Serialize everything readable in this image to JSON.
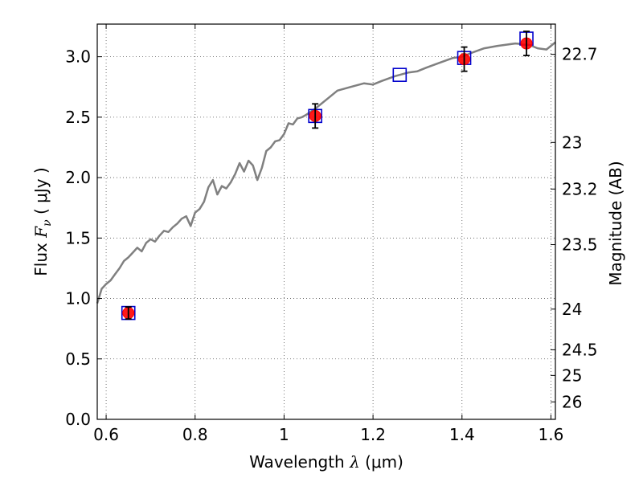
{
  "chart_data": {
    "type": "scatter",
    "xlabel": "Wavelength  λ (μm)",
    "xlabel_parts": {
      "prefix": "Wavelength  ",
      "symbol": "λ",
      "unit": " (μm)"
    },
    "ylabel": "Flux  Fν ( μJy )",
    "ylabel_parts": {
      "prefix": "Flux  ",
      "symbol": "F",
      "subscript": "ν",
      "unit": "  ( μJy )"
    },
    "y2label": "Magnitude (AB)",
    "xlim": [
      0.58,
      1.61
    ],
    "ylim": [
      0.0,
      3.27
    ],
    "x_ticks": [
      0.6,
      0.8,
      1.0,
      1.2,
      1.4,
      1.6
    ],
    "x_tick_labels": [
      "0.6",
      "0.8",
      "1",
      "1.2",
      "1.4",
      "1.6"
    ],
    "y_ticks": [
      0.0,
      0.5,
      1.0,
      1.5,
      2.0,
      2.5,
      3.0
    ],
    "y_tick_labels": [
      "0.0",
      "0.5",
      "1.0",
      "1.5",
      "2.0",
      "2.5",
      "3.0"
    ],
    "y2_ticks": [
      22.7,
      23,
      23.2,
      23.5,
      24,
      24.5,
      25,
      26
    ],
    "y2_tick_labels": [
      "22.7",
      "23",
      "23.2",
      "23.5",
      "24",
      "24.5",
      "25",
      "26"
    ],
    "grid": true,
    "colors": {
      "model": "#808080",
      "observed": "#ff0000",
      "model_box": "#0000cc",
      "errorbar": "#000000",
      "grid": "#555555"
    },
    "series": [
      {
        "name": "model spectrum",
        "kind": "line",
        "x": [
          0.58,
          0.59,
          0.6,
          0.61,
          0.62,
          0.63,
          0.64,
          0.65,
          0.66,
          0.67,
          0.68,
          0.69,
          0.7,
          0.71,
          0.72,
          0.73,
          0.74,
          0.75,
          0.76,
          0.77,
          0.78,
          0.79,
          0.8,
          0.81,
          0.82,
          0.83,
          0.84,
          0.85,
          0.86,
          0.87,
          0.88,
          0.89,
          0.9,
          0.91,
          0.92,
          0.93,
          0.94,
          0.95,
          0.96,
          0.97,
          0.98,
          0.99,
          1.0,
          1.01,
          1.02,
          1.03,
          1.04,
          1.05,
          1.07,
          1.1,
          1.12,
          1.15,
          1.18,
          1.2,
          1.22,
          1.25,
          1.28,
          1.3,
          1.32,
          1.35,
          1.38,
          1.4,
          1.42,
          1.45,
          1.48,
          1.5,
          1.52,
          1.55,
          1.57,
          1.59,
          1.61
        ],
        "y": [
          0.96,
          1.08,
          1.12,
          1.15,
          1.2,
          1.25,
          1.31,
          1.34,
          1.38,
          1.42,
          1.39,
          1.46,
          1.49,
          1.47,
          1.52,
          1.56,
          1.55,
          1.59,
          1.62,
          1.66,
          1.68,
          1.6,
          1.71,
          1.74,
          1.8,
          1.92,
          1.98,
          1.86,
          1.93,
          1.91,
          1.96,
          2.03,
          2.12,
          2.05,
          2.14,
          2.1,
          1.98,
          2.08,
          2.22,
          2.25,
          2.3,
          2.31,
          2.36,
          2.45,
          2.44,
          2.49,
          2.5,
          2.52,
          2.57,
          2.66,
          2.72,
          2.75,
          2.78,
          2.77,
          2.8,
          2.84,
          2.87,
          2.88,
          2.91,
          2.95,
          2.99,
          3.0,
          3.03,
          3.07,
          3.09,
          3.1,
          3.11,
          3.1,
          3.07,
          3.06,
          3.12
        ]
      },
      {
        "name": "observed photometry",
        "kind": "points",
        "x": [
          0.65,
          1.07,
          1.405,
          1.545
        ],
        "y": [
          0.88,
          2.51,
          2.98,
          3.11
        ],
        "yerr": [
          0.05,
          0.1,
          0.1,
          0.1
        ]
      },
      {
        "name": "model photometry",
        "kind": "boxes",
        "x": [
          0.65,
          1.07,
          1.26,
          1.405,
          1.545
        ],
        "y": [
          0.88,
          2.51,
          2.85,
          2.99,
          3.15
        ]
      }
    ]
  }
}
